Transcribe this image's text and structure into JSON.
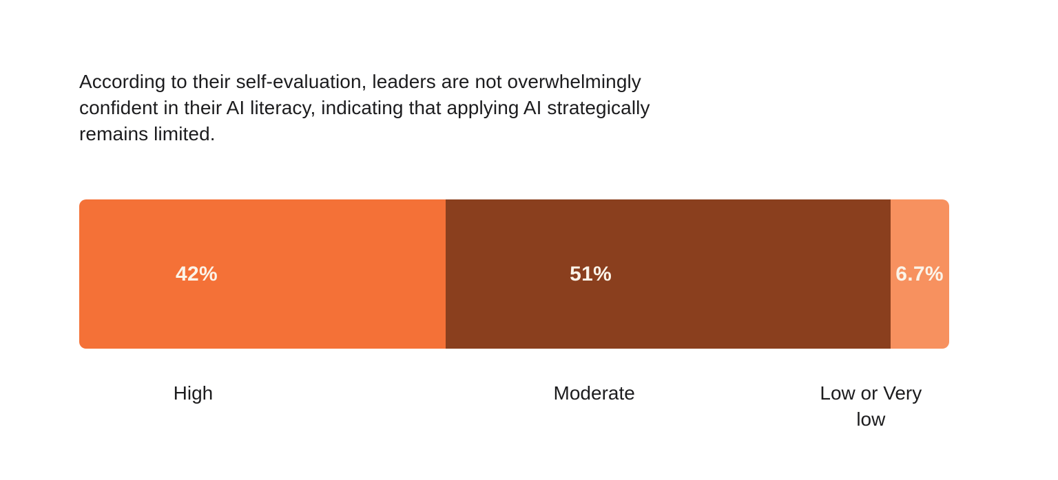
{
  "chart_data": {
    "type": "bar",
    "variant": "horizontal-stacked-single-bar",
    "title": "According to their self-evaluation, leaders are not overwhelmingly confident in their AI literacy, indicating that applying AI strategically remains limited.",
    "title_lines": [
      "According to their self-evaluation, leaders are not overwhelmingly",
      "confident in their AI literacy, indicating that applying AI strategically",
      "remains limited."
    ],
    "categories": [
      "High",
      "Moderate",
      "Low or Very low"
    ],
    "values": [
      42,
      51,
      6.7
    ],
    "value_labels": [
      "42%",
      "51%",
      "6.7%"
    ],
    "colors": [
      "#F47137",
      "#8A3F1E",
      "#F7915F"
    ],
    "value_label_color": "#FBF4E9",
    "text_color": "#1C1C1E",
    "background_color": "#FFFFFF",
    "legend": "none",
    "axes": "none",
    "xlim": [
      0,
      100
    ]
  }
}
